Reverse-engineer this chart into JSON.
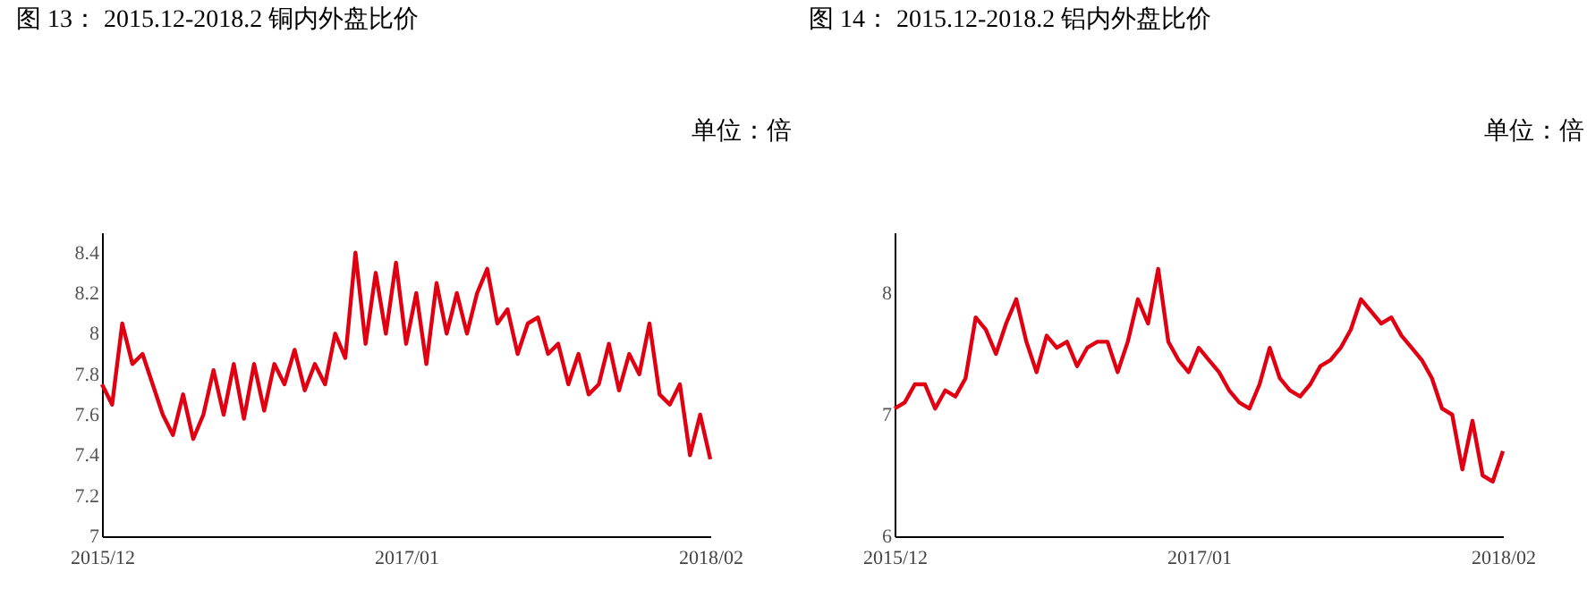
{
  "chart_data": [
    {
      "type": "line",
      "title": "图 13：  2015.12-2018.2  铜内外盘比价",
      "ylabel": "单位：倍",
      "categories": [
        "2015/12",
        null,
        null,
        null,
        null,
        null,
        null,
        null,
        null,
        null,
        null,
        null,
        null,
        null,
        null,
        null,
        null,
        null,
        null,
        null,
        null,
        null,
        null,
        null,
        null,
        null,
        null,
        null,
        null,
        null,
        "2017/01",
        null,
        null,
        null,
        null,
        null,
        null,
        null,
        null,
        null,
        null,
        null,
        null,
        null,
        null,
        null,
        null,
        null,
        null,
        null,
        null,
        null,
        null,
        null,
        null,
        null,
        null,
        null,
        null,
        null,
        "2018/02"
      ],
      "series": [
        {
          "color": "#e00012",
          "values": [
            7.75,
            7.65,
            8.05,
            7.85,
            7.9,
            7.75,
            7.6,
            7.5,
            7.7,
            7.48,
            7.6,
            7.82,
            7.6,
            7.85,
            7.58,
            7.85,
            7.62,
            7.85,
            7.75,
            7.92,
            7.72,
            7.85,
            7.75,
            8.0,
            7.88,
            8.4,
            7.95,
            8.3,
            8.0,
            8.35,
            7.95,
            8.2,
            7.85,
            8.25,
            8.0,
            8.2,
            8.0,
            8.2,
            8.32,
            8.05,
            8.12,
            7.9,
            8.05,
            8.08,
            7.9,
            7.95,
            7.75,
            7.9,
            7.7,
            7.75,
            7.95,
            7.72,
            7.9,
            7.8,
            8.05,
            7.7,
            7.65,
            7.75,
            7.4,
            7.6,
            7.38
          ]
        }
      ],
      "ylim": [
        7,
        8.5
      ],
      "yticks": [
        7,
        7.2,
        7.4,
        7.6,
        7.8,
        8,
        8.2,
        8.4
      ],
      "grid": false,
      "marker": "none",
      "line_style": "solid"
    },
    {
      "type": "line",
      "title": "图 14：  2015.12-2018.2  铝内外盘比价",
      "ylabel": "单位：倍",
      "categories": [
        "2015/12",
        null,
        null,
        null,
        null,
        null,
        null,
        null,
        null,
        null,
        null,
        null,
        null,
        null,
        null,
        null,
        null,
        null,
        null,
        null,
        null,
        null,
        null,
        null,
        null,
        null,
        null,
        null,
        null,
        null,
        "2017/01",
        null,
        null,
        null,
        null,
        null,
        null,
        null,
        null,
        null,
        null,
        null,
        null,
        null,
        null,
        null,
        null,
        null,
        null,
        null,
        null,
        null,
        null,
        null,
        null,
        null,
        null,
        null,
        null,
        null,
        "2018/02"
      ],
      "series": [
        {
          "color": "#e00012",
          "values": [
            7.05,
            7.1,
            7.25,
            7.25,
            7.05,
            7.2,
            7.15,
            7.3,
            7.8,
            7.7,
            7.5,
            7.75,
            7.95,
            7.6,
            7.35,
            7.65,
            7.55,
            7.6,
            7.4,
            7.55,
            7.6,
            7.6,
            7.35,
            7.6,
            7.95,
            7.75,
            8.2,
            7.6,
            7.45,
            7.35,
            7.55,
            7.45,
            7.35,
            7.2,
            7.1,
            7.05,
            7.25,
            7.55,
            7.3,
            7.2,
            7.15,
            7.25,
            7.4,
            7.45,
            7.55,
            7.7,
            7.95,
            7.85,
            7.75,
            7.8,
            7.65,
            7.55,
            7.45,
            7.3,
            7.05,
            7.0,
            6.55,
            6.95,
            6.5,
            6.45,
            6.7
          ]
        }
      ],
      "ylim": [
        6,
        8.5
      ],
      "yticks": [
        6,
        7,
        8
      ],
      "grid": false,
      "marker": "none",
      "line_style": "solid"
    }
  ]
}
